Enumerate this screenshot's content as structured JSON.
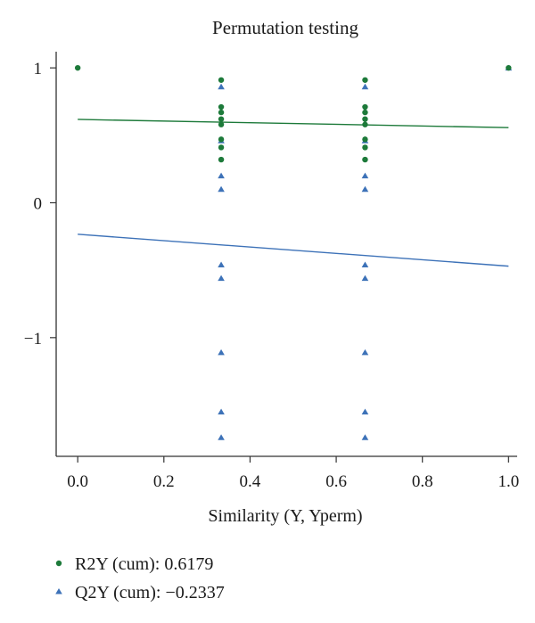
{
  "chart_data": {
    "type": "scatter",
    "title": "Permutation testing",
    "xlabel": "Similarity (Y, Yperm)",
    "ylabel": "",
    "xlim": [
      -0.05,
      1.02
    ],
    "ylim": [
      -1.88,
      1.12
    ],
    "xticks": [
      "0.0",
      "0.2",
      "0.4",
      "0.6",
      "0.8",
      "1.0"
    ],
    "xtick_values": [
      0,
      0.2,
      0.4,
      0.6,
      0.8,
      1.0
    ],
    "yticks": [
      "1",
      "0",
      "−1"
    ],
    "ytick_values": [
      1,
      0,
      -1
    ],
    "grid": false,
    "legend_position": "bottom-left",
    "series": [
      {
        "name": "R2Y (cum): 0.6179",
        "marker": "circle",
        "color": "#1d7a3a",
        "points": [
          {
            "x": 0.0,
            "y": 1.0
          },
          {
            "x": 0.333,
            "y": 0.91
          },
          {
            "x": 0.333,
            "y": 0.71
          },
          {
            "x": 0.333,
            "y": 0.67
          },
          {
            "x": 0.333,
            "y": 0.62
          },
          {
            "x": 0.333,
            "y": 0.58
          },
          {
            "x": 0.333,
            "y": 0.47
          },
          {
            "x": 0.333,
            "y": 0.41
          },
          {
            "x": 0.333,
            "y": 0.32
          },
          {
            "x": 0.667,
            "y": 0.91
          },
          {
            "x": 0.667,
            "y": 0.71
          },
          {
            "x": 0.667,
            "y": 0.67
          },
          {
            "x": 0.667,
            "y": 0.62
          },
          {
            "x": 0.667,
            "y": 0.58
          },
          {
            "x": 0.667,
            "y": 0.47
          },
          {
            "x": 0.667,
            "y": 0.41
          },
          {
            "x": 0.667,
            "y": 0.32
          },
          {
            "x": 1.0,
            "y": 1.0
          }
        ],
        "regression": {
          "x": [
            0.0,
            1.0
          ],
          "y": [
            0.6179,
            0.557
          ]
        }
      },
      {
        "name": "Q2Y (cum): −0.2337",
        "marker": "triangle",
        "color": "#3d72b8",
        "points": [
          {
            "x": 0.333,
            "y": 0.86
          },
          {
            "x": 0.333,
            "y": 0.46
          },
          {
            "x": 0.333,
            "y": 0.2
          },
          {
            "x": 0.333,
            "y": 0.1
          },
          {
            "x": 0.333,
            "y": -0.46
          },
          {
            "x": 0.333,
            "y": -0.56
          },
          {
            "x": 0.333,
            "y": -1.11
          },
          {
            "x": 0.333,
            "y": -1.55
          },
          {
            "x": 0.333,
            "y": -1.74
          },
          {
            "x": 0.667,
            "y": 0.86
          },
          {
            "x": 0.667,
            "y": 0.46
          },
          {
            "x": 0.667,
            "y": 0.2
          },
          {
            "x": 0.667,
            "y": 0.1
          },
          {
            "x": 0.667,
            "y": -0.46
          },
          {
            "x": 0.667,
            "y": -0.56
          },
          {
            "x": 0.667,
            "y": -1.11
          },
          {
            "x": 0.667,
            "y": -1.55
          },
          {
            "x": 0.667,
            "y": -1.74
          },
          {
            "x": 1.0,
            "y": 1.0
          }
        ],
        "regression": {
          "x": [
            0.0,
            1.0
          ],
          "y": [
            -0.2337,
            -0.47
          ]
        }
      }
    ]
  }
}
